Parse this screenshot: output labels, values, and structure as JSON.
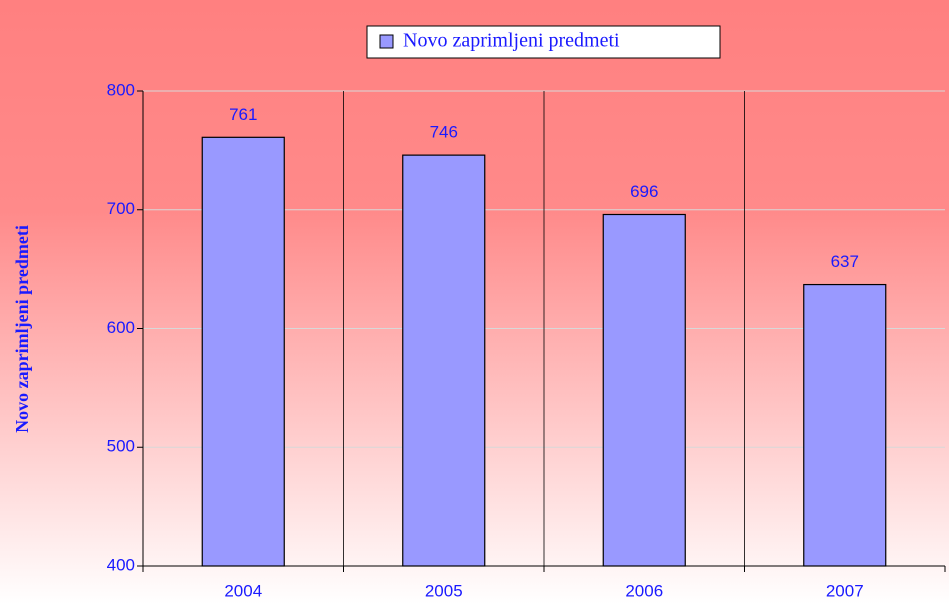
{
  "chart_data": {
    "type": "bar",
    "y_label": "Novo zaprimljeni predmeti",
    "categories": [
      "2004",
      "2005",
      "2006",
      "2007"
    ],
    "series": [
      {
        "name": "Novo zaprimljeni predmeti",
        "color": "#9999ff",
        "values": [
          761,
          746,
          696,
          637
        ]
      }
    ],
    "ylim": [
      400,
      800
    ],
    "yticks": [
      400,
      500,
      600,
      700,
      800
    ],
    "grid": true,
    "legend": "top"
  }
}
